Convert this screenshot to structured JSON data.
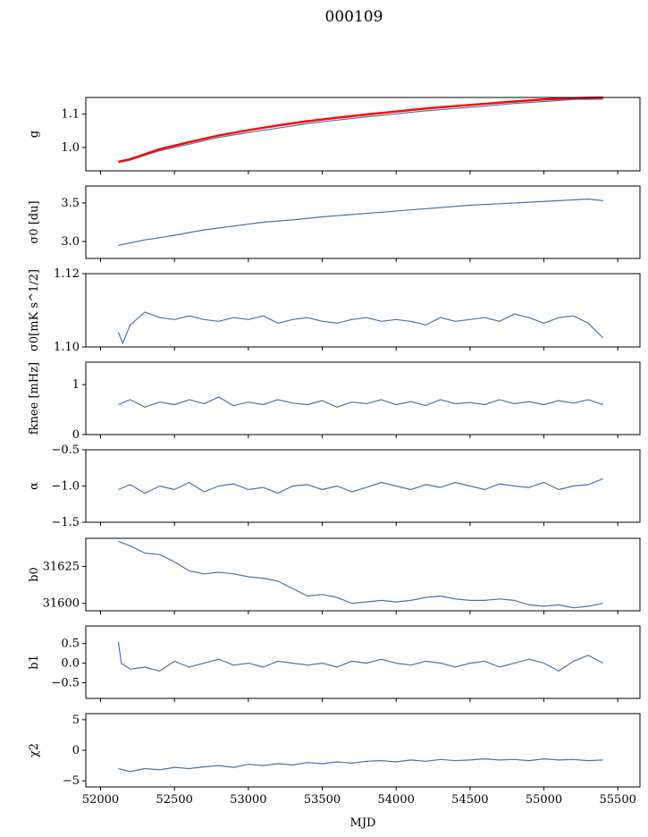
{
  "figure": {
    "title": "000109",
    "xlabel": "MJD"
  },
  "colors": {
    "series": "#4c72a4",
    "fit": "#ff0000",
    "axes": "#000000"
  },
  "chart_data": [
    {
      "type": "line",
      "ylabel": "g",
      "xlim": [
        51900,
        55650
      ],
      "ylim": [
        0.93,
        1.15
      ],
      "yticks": [
        1.0,
        1.1
      ],
      "ytick_labels": [
        "1.0",
        "1.1"
      ],
      "series": [
        {
          "x": [
            52120,
            52200,
            52400,
            52600,
            52800,
            53000,
            53200,
            53400,
            53600,
            53800,
            54000,
            54200,
            54400,
            54600,
            54800,
            55000,
            55200,
            55400
          ],
          "y": [
            0.955,
            0.962,
            0.99,
            1.01,
            1.03,
            1.045,
            1.058,
            1.072,
            1.082,
            1.092,
            1.101,
            1.11,
            1.117,
            1.124,
            1.132,
            1.138,
            1.144,
            1.145
          ]
        },
        {
          "x": [
            52120,
            52200,
            52400,
            52600,
            52800,
            53000,
            53200,
            53400,
            53600,
            53800,
            54000,
            54200,
            54400,
            54600,
            54800,
            55000,
            55200,
            55400
          ],
          "y": [
            0.957,
            0.965,
            0.995,
            1.016,
            1.036,
            1.052,
            1.066,
            1.079,
            1.089,
            1.099,
            1.108,
            1.117,
            1.124,
            1.131,
            1.138,
            1.144,
            1.148,
            1.15
          ]
        }
      ]
    },
    {
      "type": "line",
      "ylabel": "σ0 [du]",
      "xlim": [
        51900,
        55650
      ],
      "ylim": [
        2.78,
        3.72
      ],
      "yticks": [
        3.0,
        3.5
      ],
      "ytick_labels": [
        "3.0",
        "3.5"
      ],
      "series": [
        {
          "x": [
            52120,
            52300,
            52500,
            52700,
            52900,
            53100,
            53300,
            53500,
            53700,
            53900,
            54100,
            54300,
            54500,
            54700,
            54900,
            55100,
            55300,
            55400
          ],
          "y": [
            2.95,
            3.02,
            3.08,
            3.15,
            3.2,
            3.25,
            3.28,
            3.32,
            3.35,
            3.38,
            3.41,
            3.44,
            3.47,
            3.49,
            3.51,
            3.53,
            3.55,
            3.53
          ]
        }
      ]
    },
    {
      "type": "line",
      "ylabel": "σ0[mK s^1/2]",
      "xlim": [
        51900,
        55650
      ],
      "ylim": [
        1.1,
        1.12
      ],
      "yticks": [
        1.1,
        1.12
      ],
      "ytick_labels": [
        "1.10",
        "1.12"
      ],
      "series": [
        {
          "x": [
            52120,
            52150,
            52200,
            52300,
            52400,
            52500,
            52600,
            52700,
            52800,
            52900,
            53000,
            53100,
            53200,
            53300,
            53400,
            53500,
            53600,
            53700,
            53800,
            53900,
            54000,
            54100,
            54200,
            54300,
            54400,
            54500,
            54600,
            54700,
            54800,
            54900,
            55000,
            55100,
            55200,
            55300,
            55400
          ],
          "y": [
            1.104,
            1.101,
            1.106,
            1.1095,
            1.108,
            1.1075,
            1.1085,
            1.1075,
            1.107,
            1.108,
            1.1075,
            1.1085,
            1.1065,
            1.1075,
            1.108,
            1.107,
            1.1065,
            1.1075,
            1.108,
            1.107,
            1.1075,
            1.107,
            1.106,
            1.108,
            1.107,
            1.1075,
            1.108,
            1.107,
            1.109,
            1.108,
            1.1065,
            1.108,
            1.1085,
            1.1065,
            1.1025
          ]
        }
      ]
    },
    {
      "type": "line",
      "ylabel": "fknee [mHz]",
      "xlim": [
        51900,
        55650
      ],
      "ylim": [
        0,
        1.45
      ],
      "yticks": [
        0,
        1
      ],
      "ytick_labels": [
        "0",
        "1"
      ],
      "series": [
        {
          "x": [
            52120,
            52200,
            52300,
            52400,
            52500,
            52600,
            52700,
            52800,
            52900,
            53000,
            53100,
            53200,
            53300,
            53400,
            53500,
            53600,
            53700,
            53800,
            53900,
            54000,
            54100,
            54200,
            54300,
            54400,
            54500,
            54600,
            54700,
            54800,
            54900,
            55000,
            55100,
            55200,
            55300,
            55400
          ],
          "y": [
            0.6,
            0.7,
            0.55,
            0.65,
            0.6,
            0.7,
            0.62,
            0.75,
            0.58,
            0.65,
            0.6,
            0.7,
            0.63,
            0.6,
            0.68,
            0.55,
            0.65,
            0.62,
            0.7,
            0.6,
            0.66,
            0.58,
            0.7,
            0.62,
            0.64,
            0.6,
            0.7,
            0.62,
            0.66,
            0.6,
            0.68,
            0.63,
            0.7,
            0.6
          ]
        }
      ]
    },
    {
      "type": "line",
      "ylabel": "α",
      "xlim": [
        51900,
        55650
      ],
      "ylim": [
        -1.5,
        -0.5
      ],
      "yticks": [
        -1.5,
        -1.0,
        -0.5
      ],
      "ytick_labels": [
        "−1.5",
        "−1.0",
        "−0.5"
      ],
      "series": [
        {
          "x": [
            52120,
            52200,
            52300,
            52400,
            52500,
            52600,
            52700,
            52800,
            52900,
            53000,
            53100,
            53200,
            53300,
            53400,
            53500,
            53600,
            53700,
            53800,
            53900,
            54000,
            54100,
            54200,
            54300,
            54400,
            54500,
            54600,
            54700,
            54800,
            54900,
            55000,
            55100,
            55200,
            55300,
            55400
          ],
          "y": [
            -1.05,
            -0.98,
            -1.1,
            -1.0,
            -1.05,
            -0.95,
            -1.08,
            -1.0,
            -0.97,
            -1.05,
            -1.02,
            -1.1,
            -1.0,
            -0.98,
            -1.05,
            -1.0,
            -1.08,
            -1.02,
            -0.95,
            -1.0,
            -1.05,
            -0.98,
            -1.02,
            -0.95,
            -1.0,
            -1.05,
            -0.97,
            -1.0,
            -1.02,
            -0.95,
            -1.05,
            -1.0,
            -0.98,
            -0.9
          ]
        }
      ]
    },
    {
      "type": "line",
      "ylabel": "b0",
      "xlim": [
        51900,
        55650
      ],
      "ylim": [
        31595,
        31644
      ],
      "yticks": [
        31600,
        31625
      ],
      "ytick_labels": [
        "31600",
        "31625"
      ],
      "series": [
        {
          "x": [
            52120,
            52200,
            52300,
            52400,
            52500,
            52600,
            52700,
            52800,
            52900,
            53000,
            53100,
            53200,
            53300,
            53400,
            53500,
            53600,
            53700,
            53800,
            53900,
            54000,
            54100,
            54200,
            54300,
            54400,
            54500,
            54600,
            54700,
            54800,
            54900,
            55000,
            55100,
            55200,
            55300,
            55400
          ],
          "y": [
            31642,
            31639,
            31634,
            31633,
            31628,
            31622,
            31620,
            31621,
            31620,
            31618,
            31617,
            31615,
            31610,
            31605,
            31606,
            31604,
            31600,
            31601,
            31602,
            31601,
            31602,
            31604,
            31605,
            31603,
            31602,
            31602,
            31603,
            31602,
            31599,
            31598,
            31599,
            31597,
            31598,
            31600
          ]
        }
      ]
    },
    {
      "type": "line",
      "ylabel": "b1",
      "xlim": [
        51900,
        55650
      ],
      "ylim": [
        -0.9,
        0.95
      ],
      "yticks": [
        -0.5,
        0.0,
        0.5
      ],
      "ytick_labels": [
        "−0.5",
        "0.0",
        "0.5"
      ],
      "series": [
        {
          "x": [
            52120,
            52140,
            52200,
            52300,
            52400,
            52500,
            52600,
            52700,
            52800,
            52900,
            53000,
            53100,
            53200,
            53300,
            53400,
            53500,
            53600,
            53700,
            53800,
            53900,
            54000,
            54100,
            54200,
            54300,
            54400,
            54500,
            54600,
            54700,
            54800,
            54900,
            55000,
            55100,
            55200,
            55300,
            55400
          ],
          "y": [
            0.55,
            0.0,
            -0.15,
            -0.1,
            -0.2,
            0.05,
            -0.1,
            0.0,
            0.1,
            -0.05,
            0.0,
            -0.1,
            0.05,
            0.0,
            -0.05,
            0.0,
            -0.1,
            0.05,
            0.0,
            0.1,
            0.0,
            -0.05,
            0.05,
            0.0,
            -0.1,
            0.0,
            0.05,
            -0.1,
            0.0,
            0.1,
            0.0,
            -0.2,
            0.05,
            0.2,
            0.0
          ]
        }
      ]
    },
    {
      "type": "line",
      "ylabel": "χ2",
      "xlim": [
        51900,
        55650
      ],
      "ylim": [
        -6,
        6
      ],
      "yticks": [
        -5,
        0,
        5
      ],
      "ytick_labels": [
        "−5",
        "0",
        "5"
      ],
      "xticks": [
        52000,
        52500,
        53000,
        53500,
        54000,
        54500,
        55000,
        55500
      ],
      "xtick_labels": [
        "52000",
        "52500",
        "53000",
        "53500",
        "54000",
        "54500",
        "55000",
        "55500"
      ],
      "series": [
        {
          "x": [
            52120,
            52200,
            52300,
            52400,
            52500,
            52600,
            52700,
            52800,
            52900,
            53000,
            53100,
            53200,
            53300,
            53400,
            53500,
            53600,
            53700,
            53800,
            53900,
            54000,
            54100,
            54200,
            54300,
            54400,
            54500,
            54600,
            54700,
            54800,
            54900,
            55000,
            55100,
            55200,
            55300,
            55400
          ],
          "y": [
            -3.0,
            -3.5,
            -3.0,
            -3.2,
            -2.8,
            -3.0,
            -2.7,
            -2.5,
            -2.8,
            -2.3,
            -2.5,
            -2.2,
            -2.4,
            -2.0,
            -2.2,
            -1.9,
            -2.1,
            -1.8,
            -1.7,
            -1.9,
            -1.6,
            -1.8,
            -1.5,
            -1.7,
            -1.6,
            -1.4,
            -1.6,
            -1.5,
            -1.7,
            -1.4,
            -1.6,
            -1.5,
            -1.7,
            -1.6
          ]
        }
      ]
    }
  ]
}
